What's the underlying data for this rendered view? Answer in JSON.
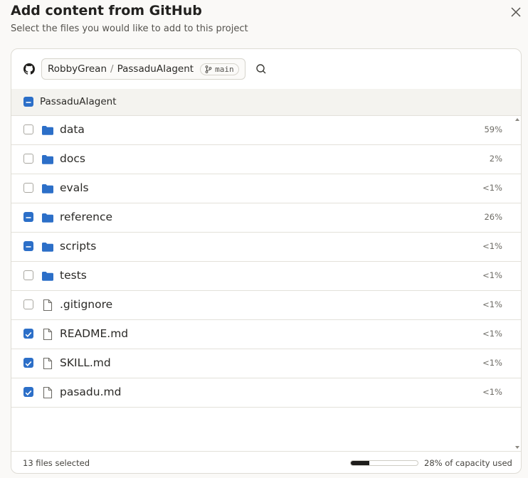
{
  "header": {
    "title": "Add content from GitHub",
    "subtitle": "Select the files you would like to add to this project"
  },
  "repo": {
    "owner": "RobbyGrean",
    "separator": "/",
    "name": "PassaduAIagent",
    "branch": "main"
  },
  "root": {
    "name": "PassaduAIagent",
    "state": "partial"
  },
  "items": [
    {
      "name": "data",
      "kind": "folder",
      "state": "off",
      "size": "59%"
    },
    {
      "name": "docs",
      "kind": "folder",
      "state": "off",
      "size": "2%"
    },
    {
      "name": "evals",
      "kind": "folder",
      "state": "off",
      "size": "<1%"
    },
    {
      "name": "reference",
      "kind": "folder",
      "state": "partial",
      "size": "26%"
    },
    {
      "name": "scripts",
      "kind": "folder",
      "state": "partial",
      "size": "<1%"
    },
    {
      "name": "tests",
      "kind": "folder",
      "state": "off",
      "size": "<1%"
    },
    {
      "name": ".gitignore",
      "kind": "file",
      "state": "off",
      "size": "<1%"
    },
    {
      "name": "README.md",
      "kind": "file",
      "state": "checked",
      "size": "<1%"
    },
    {
      "name": "SKILL.md",
      "kind": "file",
      "state": "checked",
      "size": "<1%"
    },
    {
      "name": "pasadu.md",
      "kind": "file",
      "state": "checked",
      "size": "<1%"
    }
  ],
  "footer": {
    "selected": "13 files selected",
    "capacity": {
      "value": 28,
      "label": "28% of capacity used"
    }
  }
}
